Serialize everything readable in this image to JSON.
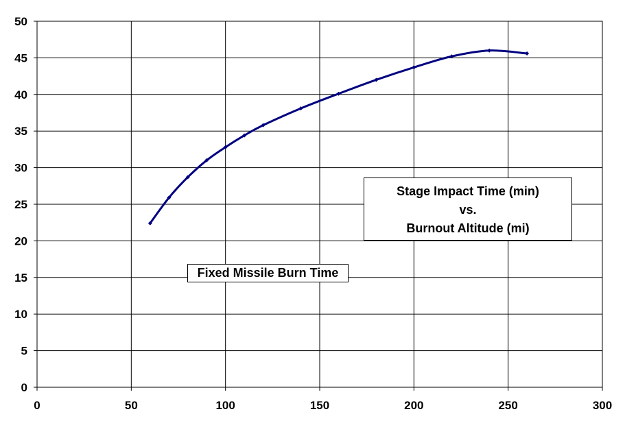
{
  "chart_data": {
    "type": "line",
    "title_lines": [
      "Stage Impact Time (min)",
      "vs.",
      "Burnout Altitude (mi)"
    ],
    "annotation": "Fixed Missile Burn Time",
    "xlabel": "",
    "ylabel": "",
    "xlim": [
      0,
      300
    ],
    "ylim": [
      0,
      50
    ],
    "xticks": [
      "0",
      "50",
      "100",
      "150",
      "200",
      "250",
      "300"
    ],
    "yticks": [
      "0",
      "5",
      "10",
      "15",
      "20",
      "25",
      "30",
      "35",
      "40",
      "45",
      "50"
    ],
    "grid": true,
    "series": [
      {
        "color": "#000080",
        "x": [
          60,
          70,
          80,
          90,
          100,
          110,
          120,
          140,
          160,
          180,
          200,
          220,
          240,
          260
        ],
        "y": [
          22.4,
          25.9,
          28.7,
          31.0,
          32.8,
          34.4,
          35.8,
          38.1,
          40.1,
          42.0,
          43.7,
          45.2,
          46.0,
          45.6
        ]
      }
    ]
  }
}
